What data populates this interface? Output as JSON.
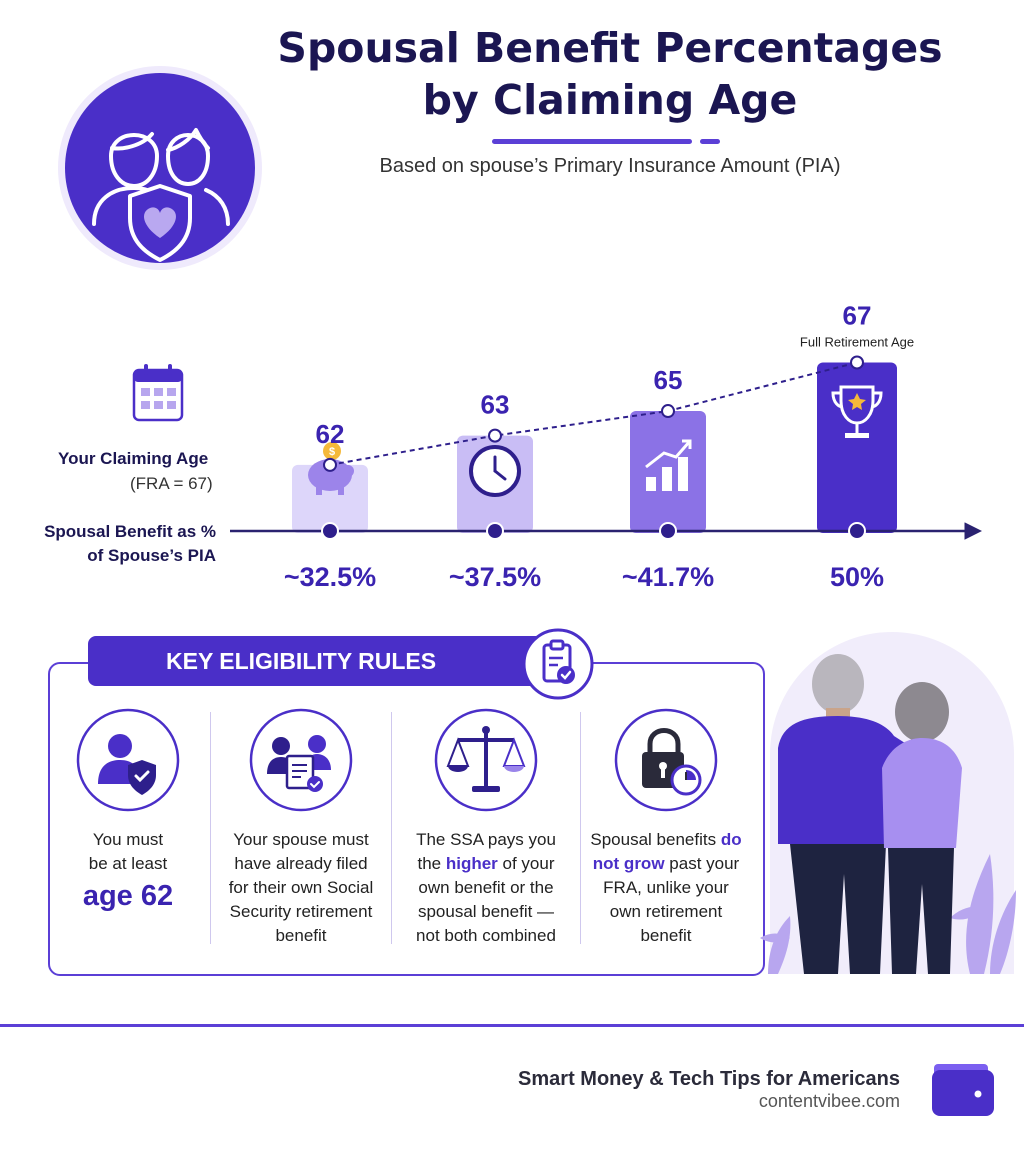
{
  "header": {
    "title_line1": "Spousal Benefit Percentages",
    "title_line2": "by Claiming Age",
    "subtitle": "Based on spouse’s Primary Insurance Amount (PIA)"
  },
  "chart_data": {
    "type": "bar",
    "categories": [
      "62",
      "63",
      "65",
      "67"
    ],
    "values": [
      32.5,
      37.5,
      41.7,
      50
    ],
    "value_labels": [
      "~32.5%",
      "~37.5%",
      "~41.7%",
      "50%"
    ],
    "annotations": [
      {
        "category": "67",
        "text": "Full Retirement Age"
      }
    ],
    "bar_colors": [
      "#ddd6fa",
      "#c9bdf5",
      "#8b72e6",
      "#4a2fc8"
    ],
    "trend_line": "dashed",
    "ylim": [
      0,
      50
    ],
    "x_axis_label": "Your Claiming Age",
    "x_axis_note": "(FRA = 67)",
    "y_axis_label": "Spousal Benefit as % of Spouse’s PIA",
    "bar_icons": [
      "piggy-bank-icon",
      "clock-icon",
      "growth-chart-icon",
      "trophy-icon"
    ]
  },
  "side_labels": {
    "claim_age": "Your Claiming Age",
    "fra_note": "(FRA = 67)",
    "benefit_line1": "Spousal Benefit as %",
    "benefit_line2": "of Spouse’s PIA"
  },
  "rules": {
    "banner": "KEY ELIGIBILITY RULES",
    "items": [
      {
        "icon": "person-shield-icon",
        "pre": "You must be at least",
        "big": "age 62"
      },
      {
        "icon": "couple-document-icon",
        "text": "Your spouse must have already filed for their own Social Security retirement benefit"
      },
      {
        "icon": "scales-icon",
        "pre": "The SSA pays you the",
        "hl": "higher",
        "post": "of your own benefit or the spousal benefit — not both combined"
      },
      {
        "icon": "lock-clock-icon",
        "pre": "Spousal benefits",
        "hl": "do not grow",
        "post": "past your FRA, unlike your own retirement benefit"
      }
    ]
  },
  "footer": {
    "tagline": "Smart Money & Tech Tips for Americans",
    "site": "contentvibee.com"
  },
  "colors": {
    "accent": "#4a2fc8",
    "dark_text": "#1b1652",
    "light_purple": "#ddd6fa"
  }
}
